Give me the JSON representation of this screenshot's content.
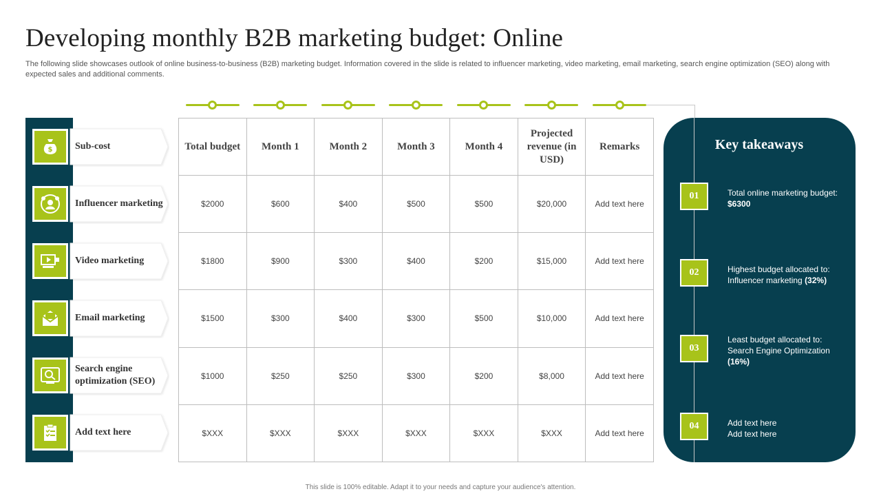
{
  "title": "Developing monthly B2B marketing budget: Online",
  "subtitle": "The following slide showcases outlook of online business-to-business (B2B) marketing budget. Information covered in the slide is related to influencer marketing, video marketing, email marketing, search engine optimization (SEO) along with expected sales and additional comments.",
  "rows": [
    {
      "label": "Sub-cost",
      "icon": "money-bag-icon"
    },
    {
      "label": "Influencer marketing",
      "icon": "influencer-icon"
    },
    {
      "label": "Video marketing",
      "icon": "video-icon"
    },
    {
      "label": "Email marketing",
      "icon": "email-icon"
    },
    {
      "label": "Search engine optimization (SEO)",
      "icon": "seo-icon"
    },
    {
      "label": "Add text here",
      "icon": "clipboard-icon"
    }
  ],
  "table": {
    "headers": [
      "Total budget",
      "Month 1",
      "Month 2",
      "Month 3",
      "Month 4",
      "Projected revenue (in USD)",
      "Remarks"
    ],
    "body": [
      [
        "$2000",
        "$600",
        "$400",
        "$500",
        "$500",
        "$20,000",
        "Add text here"
      ],
      [
        "$1800",
        "$900",
        "$300",
        "$400",
        "$200",
        "$15,000",
        "Add text here"
      ],
      [
        "$1500",
        "$300",
        "$400",
        "$300",
        "$500",
        "$10,000",
        "Add text here"
      ],
      [
        "$1000",
        "$250",
        "$250",
        "$300",
        "$200",
        "$8,000",
        "Add text here"
      ],
      [
        "$XXX",
        "$XXX",
        "$XXX",
        "$XXX",
        "$XXX",
        "$XXX",
        "Add text here"
      ]
    ]
  },
  "takeaways": {
    "title": "Key takeaways",
    "items": [
      {
        "num": "01",
        "text": "Total online marketing budget: ",
        "bold": "$6300",
        "tail": ""
      },
      {
        "num": "02",
        "text": "Highest budget allocated to: Influencer  marketing ",
        "bold": "(32%)",
        "tail": ""
      },
      {
        "num": "03",
        "text": "Least budget allocated to: Search Engine Optimization ",
        "bold": "(16%)",
        "tail": ""
      },
      {
        "num": "04",
        "text": "Add text here",
        "bold": "",
        "tail": "Add text here"
      }
    ]
  },
  "footer": "This slide is 100% editable. Adapt it to your needs and capture your audience's attention.",
  "colors": {
    "accent": "#a8c31a",
    "dark": "#073f4f"
  }
}
